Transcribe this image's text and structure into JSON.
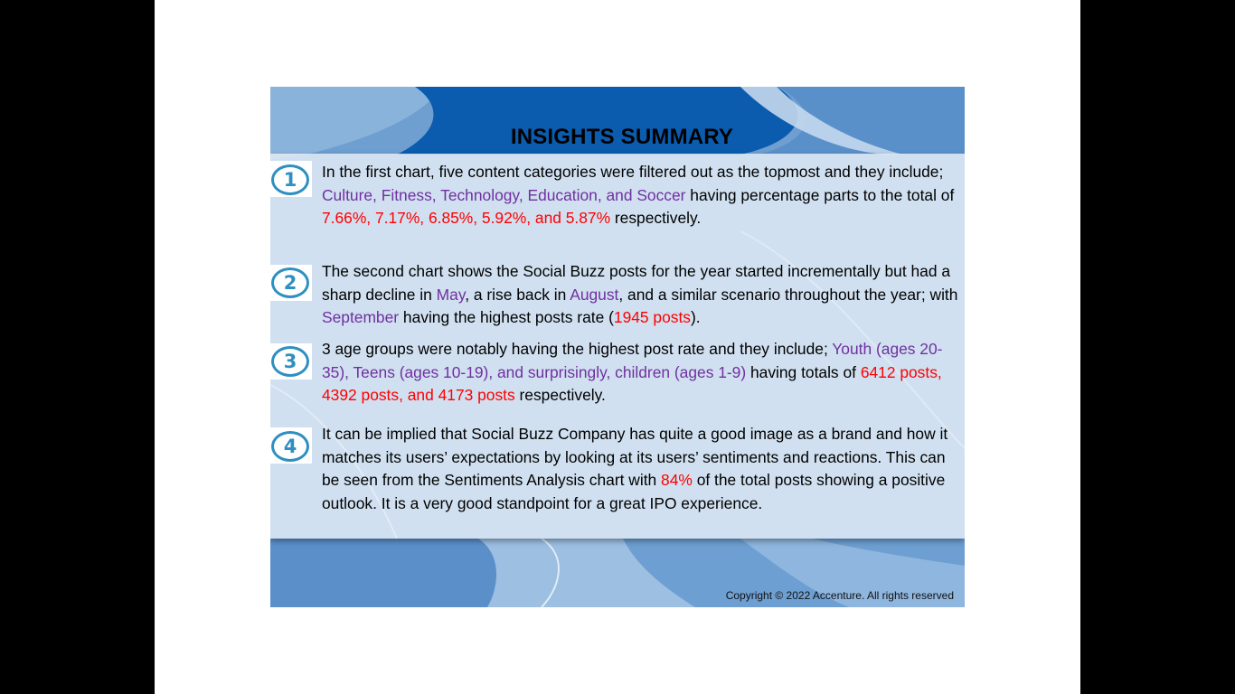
{
  "slide": {
    "title": "INSIGHTS SUMMARY",
    "copyright": "Copyright © 2022 Accenture.  All rights reserved"
  },
  "items": [
    {
      "number": "1",
      "segments": [
        "In the first chart, five content categories were filtered out as the topmost and they include; ",
        "Culture, Fitness, Technology, Education, and Soccer",
        " having percentage parts to the total of ",
        "7.66%, 7.17%, 6.85%, 5.92%, and 5.87%",
        " respectively."
      ]
    },
    {
      "number": "2",
      "segments": [
        "The second chart shows the Social Buzz posts for the year started incrementally but had a sharp decline in ",
        "May",
        ", a rise back in ",
        "August",
        ", and a similar scenario throughout the year; with ",
        "September",
        " having the highest posts rate (",
        "1945 posts",
        ")."
      ]
    },
    {
      "number": "3",
      "segments": [
        "3 age groups were notably having the highest post rate and they include; ",
        "Youth (ages 20-35), Teens (ages 10-19), and surprisingly, children (ages 1-9)",
        " having totals of ",
        "6412 posts, 4392 posts, and 4173 posts",
        " respectively."
      ]
    },
    {
      "number": "4",
      "segments": [
        "It can be implied that Social Buzz Company has quite a good image as a brand and how it matches its users’ expectations by looking at its users’ sentiments and reactions. This can be seen from the Sentiments Analysis chart with ",
        "84%",
        " of the total posts showing a positive outlook. It is a very good standpoint for a great IPO experience."
      ]
    }
  ],
  "colors": {
    "highlight_purple": "#7030a0",
    "highlight_red": "#ff0000",
    "number_circle": "#2e8fc1",
    "slide_blue": "#6b9fd0"
  }
}
